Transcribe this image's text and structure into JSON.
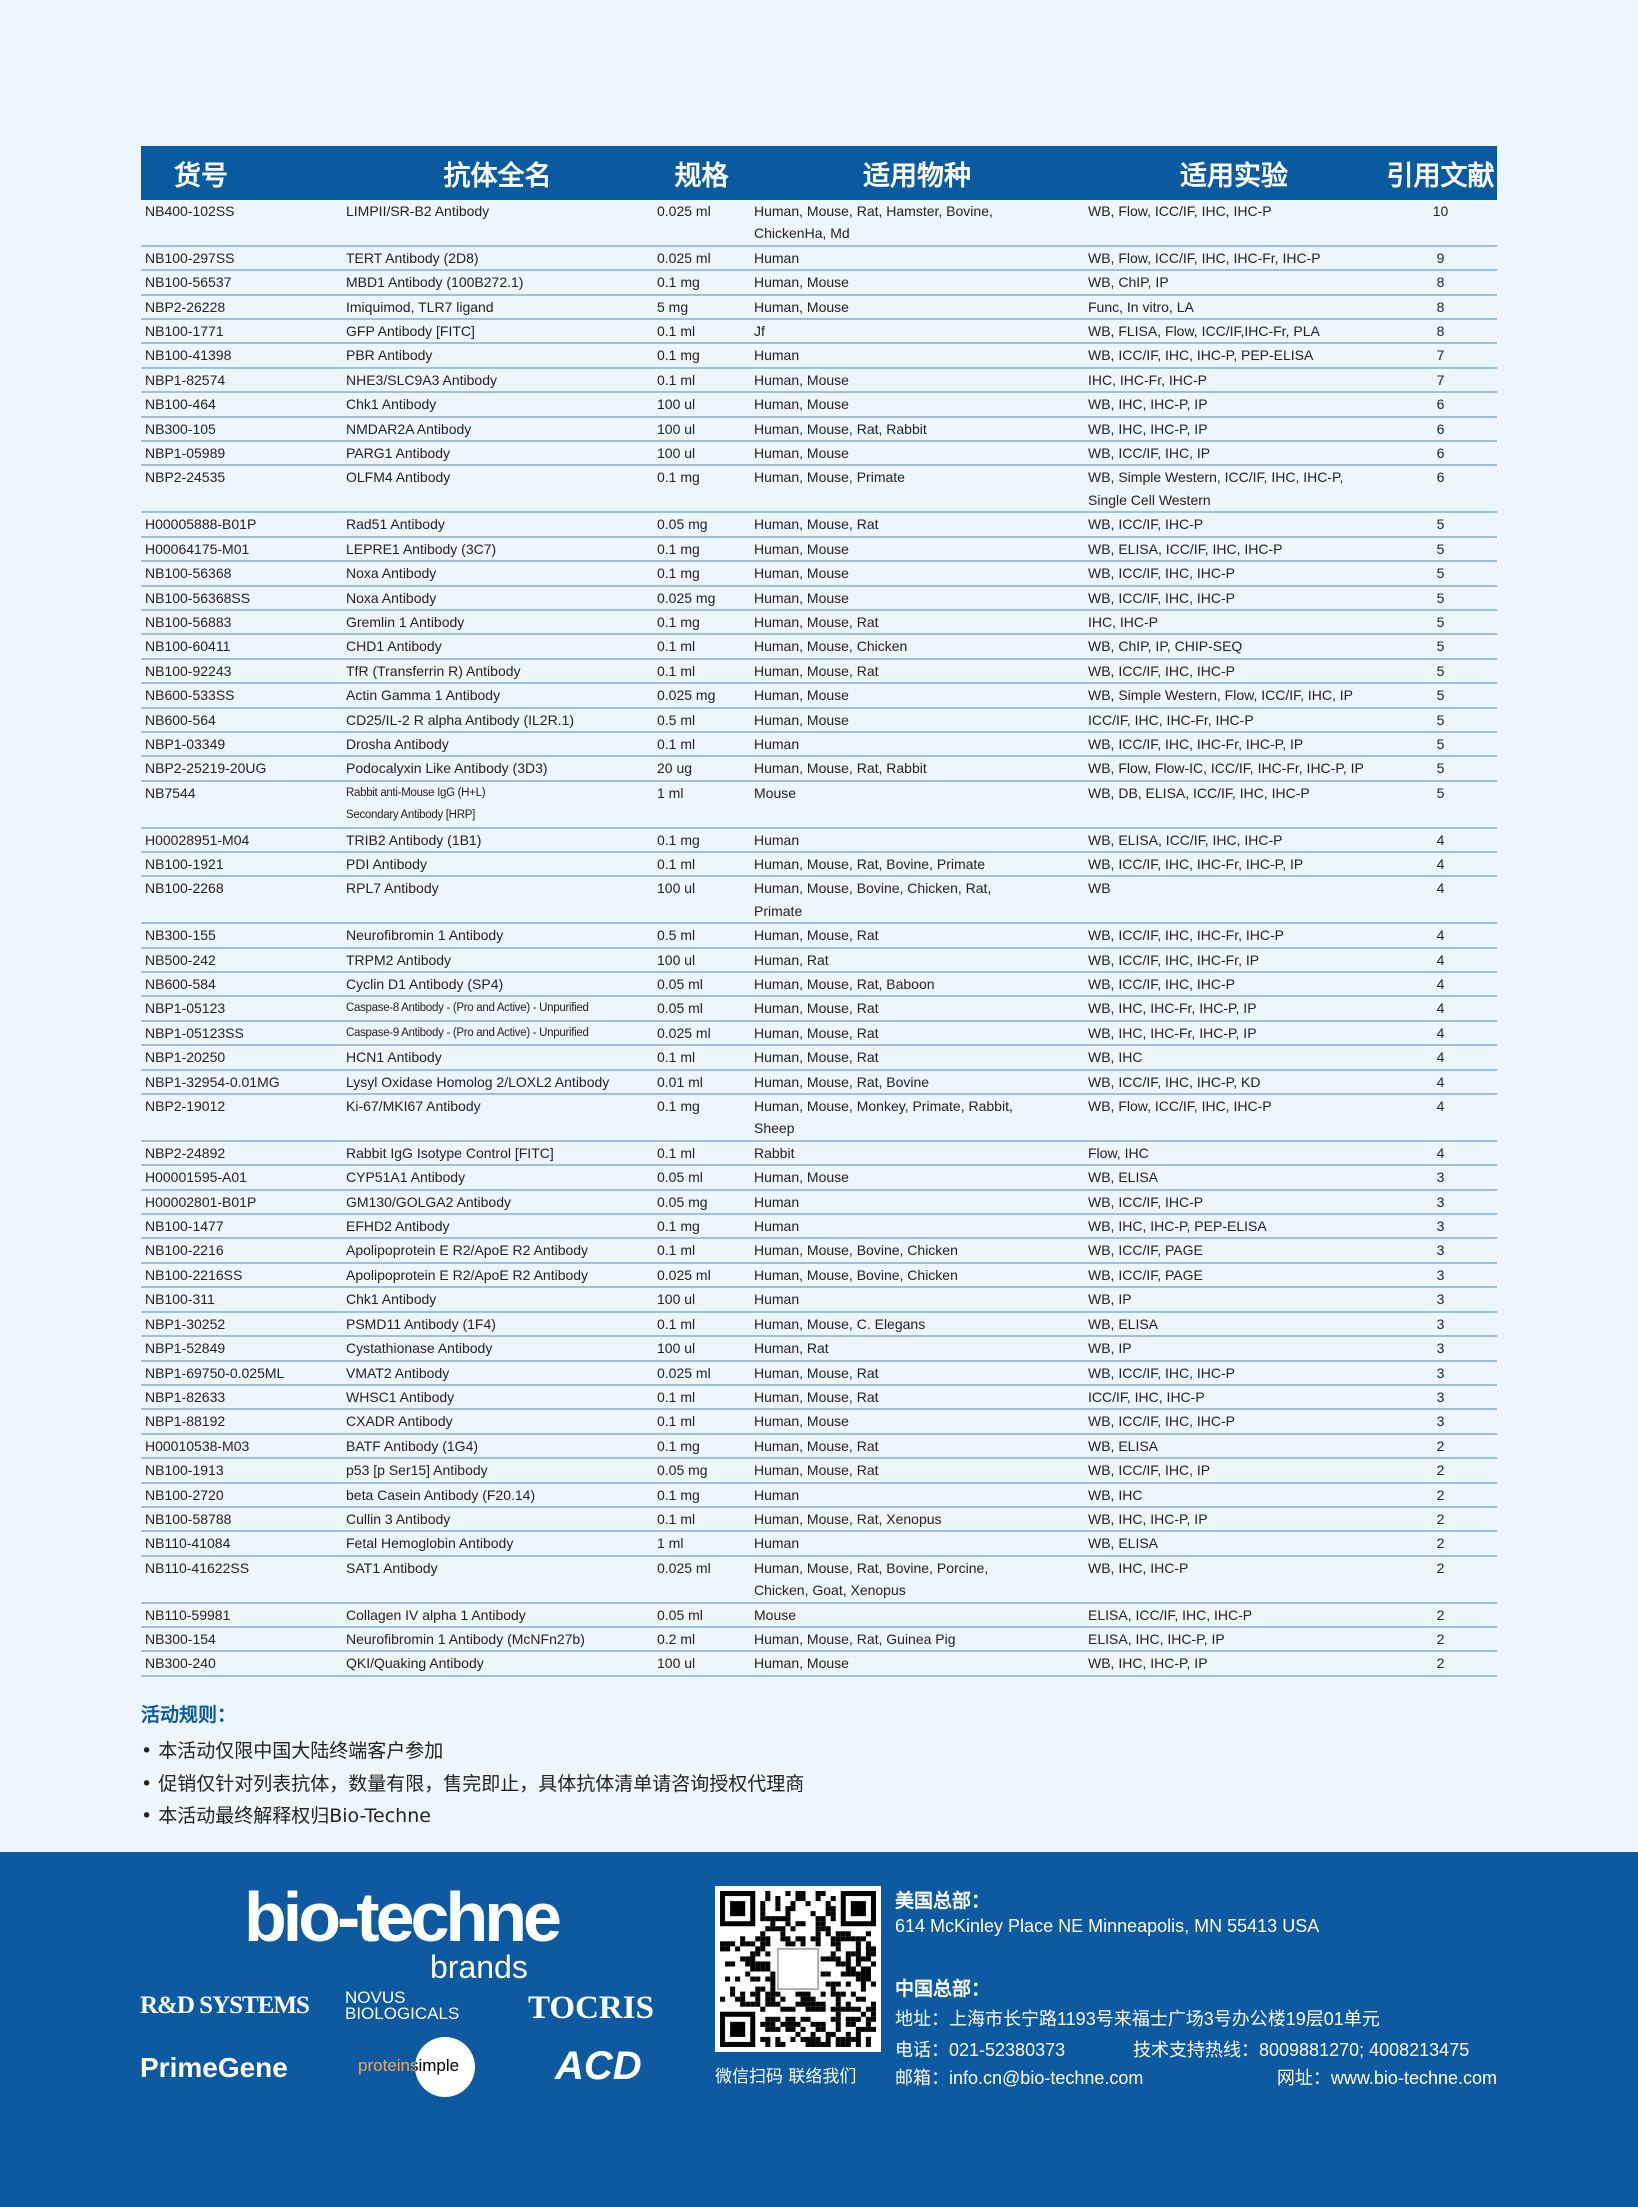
{
  "table": {
    "headers": [
      "货号",
      "抗体全名",
      "规格",
      "适用物种",
      "适用实验",
      "引用文献"
    ],
    "rows": [
      [
        "NB400-102SS",
        "LIMPII/SR-B2 Antibody",
        "0.025 ml",
        "Human, Mouse, Rat, Hamster, Bovine,\nChickenHa, Md",
        "WB, Flow, ICC/IF, IHC, IHC-P",
        "10"
      ],
      [
        "NB100-297SS",
        "TERT Antibody (2D8)",
        "0.025 ml",
        "Human",
        "WB, Flow, ICC/IF, IHC, IHC-Fr, IHC-P",
        "9"
      ],
      [
        "NB100-56537",
        "MBD1 Antibody (100B272.1)",
        "0.1 mg",
        "Human, Mouse",
        "WB, ChIP, IP",
        "8"
      ],
      [
        "NBP2-26228",
        "Imiquimod, TLR7 ligand",
        "5 mg",
        "Human, Mouse",
        "Func, In vitro, LA",
        "8"
      ],
      [
        "NB100-1771",
        "GFP Antibody [FITC]",
        "0.1 ml",
        "Jf",
        "WB, FLISA, Flow, ICC/IF,IHC-Fr, PLA",
        "8"
      ],
      [
        "NB100-41398",
        "PBR Antibody",
        "0.1 mg",
        "Human",
        "WB, ICC/IF, IHC, IHC-P, PEP-ELISA",
        "7"
      ],
      [
        "NBP1-82574",
        "NHE3/SLC9A3 Antibody",
        "0.1 ml",
        "Human, Mouse",
        "IHC, IHC-Fr, IHC-P",
        "7"
      ],
      [
        "NB100-464",
        "Chk1 Antibody",
        "100 ul",
        "Human, Mouse",
        "WB, IHC, IHC-P, IP",
        "6"
      ],
      [
        "NB300-105",
        "NMDAR2A Antibody",
        "100 ul",
        "Human, Mouse, Rat, Rabbit",
        "WB, IHC, IHC-P, IP",
        "6"
      ],
      [
        "NBP1-05989",
        "PARG1 Antibody",
        "100 ul",
        "Human, Mouse",
        "WB, ICC/IF, IHC, IP",
        "6"
      ],
      [
        "NBP2-24535",
        "OLFM4 Antibody",
        "0.1 mg",
        "Human, Mouse, Primate",
        "WB, Simple Western, ICC/IF, IHC, IHC-P,\nSingle Cell Western",
        "6"
      ],
      [
        "H00005888-B01P",
        "Rad51 Antibody",
        "0.05 mg",
        "Human, Mouse, Rat",
        "WB, ICC/IF, IHC-P",
        "5"
      ],
      [
        "H00064175-M01",
        "LEPRE1 Antibody (3C7)",
        "0.1 mg",
        "Human, Mouse",
        "WB, ELISA, ICC/IF, IHC, IHC-P",
        "5"
      ],
      [
        "NB100-56368",
        "Noxa Antibody",
        "0.1 mg",
        "Human, Mouse",
        "WB, ICC/IF, IHC, IHC-P",
        "5"
      ],
      [
        "NB100-56368SS",
        "Noxa Antibody",
        "0.025 mg",
        "Human, Mouse",
        "WB, ICC/IF, IHC, IHC-P",
        "5"
      ],
      [
        "NB100-56883",
        "Gremlin 1 Antibody",
        "0.1 mg",
        "Human, Mouse, Rat",
        "IHC, IHC-P",
        "5"
      ],
      [
        "NB100-60411",
        "CHD1 Antibody",
        "0.1 ml",
        "Human, Mouse, Chicken",
        "WB, ChIP, IP, CHIP-SEQ",
        "5"
      ],
      [
        "NB100-92243",
        "TfR (Transferrin R) Antibody",
        "0.1 ml",
        "Human, Mouse, Rat",
        "WB, ICC/IF, IHC, IHC-P",
        "5"
      ],
      [
        "NB600-533SS",
        "Actin Gamma 1 Antibody",
        "0.025 mg",
        "Human, Mouse",
        "WB, Simple Western, Flow, ICC/IF, IHC, IP",
        "5"
      ],
      [
        "NB600-564",
        "CD25/IL-2 R alpha Antibody (IL2R.1)",
        "0.5 ml",
        "Human, Mouse",
        "ICC/IF, IHC, IHC-Fr, IHC-P",
        "5"
      ],
      [
        "NBP1-03349",
        "Drosha Antibody",
        "0.1 ml",
        "Human",
        "WB, ICC/IF, IHC, IHC-Fr, IHC-P, IP",
        "5"
      ],
      [
        "NBP2-25219-20UG",
        "Podocalyxin Like Antibody (3D3)",
        "20 ug",
        "Human, Mouse, Rat, Rabbit",
        "WB, Flow, Flow-IC, ICC/IF, IHC-Fr, IHC-P, IP",
        "5"
      ],
      [
        "NB7544",
        "Rabbit anti-Mouse IgG (H+L)\nSecondary Antibody [HRP]",
        "1 ml",
        "Mouse",
        "WB, DB, ELISA, ICC/IF, IHC, IHC-P",
        "5"
      ],
      [
        "H00028951-M04",
        "TRIB2 Antibody (1B1)",
        "0.1 mg",
        "Human",
        "WB, ELISA, ICC/IF, IHC, IHC-P",
        "4"
      ],
      [
        "NB100-1921",
        "PDI Antibody",
        "0.1 ml",
        "Human, Mouse, Rat, Bovine, Primate",
        "WB, ICC/IF, IHC, IHC-Fr, IHC-P, IP",
        "4"
      ],
      [
        "NB100-2268",
        "RPL7 Antibody",
        "100 ul",
        "Human, Mouse, Bovine, Chicken, Rat,\nPrimate",
        "WB",
        "4"
      ],
      [
        "NB300-155",
        "Neurofibromin 1 Antibody",
        "0.5 ml",
        "Human, Mouse, Rat",
        "WB, ICC/IF, IHC, IHC-Fr, IHC-P",
        "4"
      ],
      [
        "NB500-242",
        "TRPM2 Antibody",
        "100 ul",
        "Human, Rat",
        "WB, ICC/IF, IHC, IHC-Fr, IP",
        "4"
      ],
      [
        "NB600-584",
        "Cyclin D1 Antibody (SP4)",
        "0.05 ml",
        "Human, Mouse, Rat, Baboon",
        "WB, ICC/IF, IHC, IHC-P",
        "4"
      ],
      [
        "NBP1-05123",
        "Caspase-8 Antibody - (Pro and Active) - Unpurified",
        "0.05 ml",
        "Human, Mouse, Rat",
        "WB, IHC, IHC-Fr, IHC-P, IP",
        "4"
      ],
      [
        "NBP1-05123SS",
        "Caspase-9 Antibody - (Pro and Active) - Unpurified",
        "0.025 ml",
        "Human, Mouse, Rat",
        "WB, IHC, IHC-Fr, IHC-P, IP",
        "4"
      ],
      [
        "NBP1-20250",
        "HCN1 Antibody",
        "0.1 ml",
        "Human, Mouse, Rat",
        "WB, IHC",
        "4"
      ],
      [
        "NBP1-32954-0.01MG",
        "Lysyl Oxidase Homolog 2/LOXL2 Antibody",
        "0.01 ml",
        "Human, Mouse, Rat, Bovine",
        "WB, ICC/IF, IHC, IHC-P, KD",
        "4"
      ],
      [
        "NBP2-19012",
        "Ki-67/MKI67 Antibody",
        "0.1 mg",
        "Human, Mouse, Monkey, Primate, Rabbit,\nSheep",
        "WB, Flow, ICC/IF, IHC, IHC-P",
        "4"
      ],
      [
        "NBP2-24892",
        "Rabbit IgG Isotype Control [FITC]",
        "0.1 ml",
        "Rabbit",
        "Flow, IHC",
        "4"
      ],
      [
        "H00001595-A01",
        "CYP51A1 Antibody",
        "0.05 ml",
        "Human, Mouse",
        "WB, ELISA",
        "3"
      ],
      [
        "H00002801-B01P",
        "GM130/GOLGA2 Antibody",
        "0.05 mg",
        "Human",
        "WB, ICC/IF, IHC-P",
        "3"
      ],
      [
        "NB100-1477",
        "EFHD2 Antibody",
        "0.1 mg",
        "Human",
        "WB, IHC, IHC-P, PEP-ELISA",
        "3"
      ],
      [
        "NB100-2216",
        "Apolipoprotein E R2/ApoE R2 Antibody",
        "0.1 ml",
        "Human, Mouse, Bovine, Chicken",
        "WB, ICC/IF, PAGE",
        "3"
      ],
      [
        "NB100-2216SS",
        "Apolipoprotein E R2/ApoE R2 Antibody",
        "0.025 ml",
        "Human, Mouse, Bovine, Chicken",
        "WB, ICC/IF, PAGE",
        "3"
      ],
      [
        "NB100-311",
        "Chk1 Antibody",
        "100 ul",
        "Human",
        "WB, IP",
        "3"
      ],
      [
        "NBP1-30252",
        "PSMD11 Antibody (1F4)",
        "0.1 ml",
        "Human, Mouse, C. Elegans",
        "WB, ELISA",
        "3"
      ],
      [
        "NBP1-52849",
        "Cystathionase Antibody",
        "100 ul",
        "Human, Rat",
        "WB, IP",
        "3"
      ],
      [
        "NBP1-69750-0.025ML",
        "VMAT2 Antibody",
        "0.025 ml",
        "Human, Mouse, Rat",
        "WB, ICC/IF, IHC, IHC-P",
        "3"
      ],
      [
        "NBP1-82633",
        "WHSC1 Antibody",
        "0.1 ml",
        "Human, Mouse, Rat",
        "ICC/IF, IHC, IHC-P",
        "3"
      ],
      [
        "NBP1-88192",
        "CXADR Antibody",
        "0.1 ml",
        "Human, Mouse",
        "WB, ICC/IF, IHC, IHC-P",
        "3"
      ],
      [
        "H00010538-M03",
        "BATF Antibody (1G4)",
        "0.1 mg",
        "Human, Mouse, Rat",
        "WB, ELISA",
        "2"
      ],
      [
        "NB100-1913",
        "p53 [p Ser15] Antibody",
        "0.05 mg",
        "Human, Mouse, Rat",
        "WB, ICC/IF, IHC, IP",
        "2"
      ],
      [
        "NB100-2720",
        "beta Casein Antibody (F20.14)",
        "0.1 mg",
        "Human",
        "WB, IHC",
        "2"
      ],
      [
        "NB100-58788",
        "Cullin 3 Antibody",
        "0.1 ml",
        "Human, Mouse, Rat, Xenopus",
        "WB, IHC, IHC-P, IP",
        "2"
      ],
      [
        "NB110-41084",
        "Fetal Hemoglobin Antibody",
        "1 ml",
        "Human",
        "WB, ELISA",
        "2"
      ],
      [
        "NB110-41622SS",
        "SAT1 Antibody",
        "0.025 ml",
        "Human, Mouse, Rat, Bovine, Porcine,\nChicken, Goat, Xenopus",
        "WB, IHC, IHC-P",
        "2"
      ],
      [
        "NB110-59981",
        "Collagen IV alpha 1 Antibody",
        "0.05 ml",
        "Mouse",
        "ELISA, ICC/IF, IHC, IHC-P",
        "2"
      ],
      [
        "NB300-154",
        "Neurofibromin 1 Antibody (McNFn27b)",
        "0.2 ml",
        "Human, Mouse, Rat, Guinea Pig",
        "ELISA, IHC, IHC-P, IP",
        "2"
      ],
      [
        "NB300-240",
        "QKI/Quaking Antibody",
        "100 ul",
        "Human, Mouse",
        "WB, IHC, IHC-P, IP",
        "2"
      ]
    ]
  },
  "rules": {
    "title": "活动规则：",
    "items": [
      "• 本活动仅限中国大陆终端客户参加",
      "• 促销仅针对列表抗体，数量有限，售完即止，具体抗体清单请咨询授权代理商",
      "• 本活动最终解释权归Bio-Techne"
    ]
  },
  "footer": {
    "logo": "bio-techne",
    "brands_label": "brands",
    "brand_logos": [
      "R&D SYSTEMS",
      "NOVUS BIOLOGICALS",
      "TOCRIS",
      "PrimeGene",
      "proteinsimple",
      "ACD"
    ],
    "qr_caption": "微信扫码  联络我们",
    "us_hq_title": "美国总部：",
    "us_hq_address": "614 McKinley Place NE Minneapolis, MN 55413 USA",
    "cn_hq_title": "中国总部：",
    "cn_address": "地址：上海市长宁路1193号来福士广场3号办公楼19层01单元",
    "phone": "电话：021-52380373",
    "hotline": "技术支持热线：8009881270; 4008213475",
    "email": "邮箱：info.cn@bio-techne.com",
    "website": "网址：www.bio-techne.com"
  },
  "colors": {
    "header_blue": "#0a5aa0",
    "footer_blue": "#0d5aa1",
    "row_line": "#9dc0e3",
    "background": "#eef6fd"
  }
}
